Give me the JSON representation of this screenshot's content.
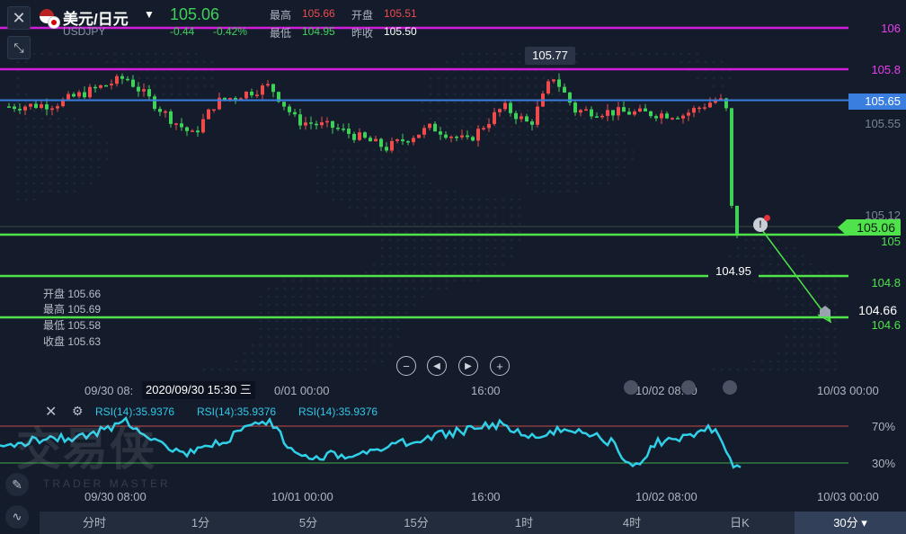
{
  "header": {
    "symbol_name": "美元/日元",
    "symbol_code": "USDJPY",
    "price": "105.06",
    "change": "-0.44",
    "change_pct": "-0.42%",
    "high_label": "最高",
    "high": "105.66",
    "low_label": "最低",
    "low": "104.95",
    "open_label": "开盘",
    "open": "105.51",
    "prev_label": "昨收",
    "prev": "105.50"
  },
  "price_axis": {
    "labels": [
      "106",
      "105.8",
      "105.65",
      "105.55",
      "105.12",
      "105.06",
      "105",
      "104.8",
      "104.66",
      "104.6"
    ]
  },
  "annotations": {
    "peak": "105.77",
    "trough": "104.95"
  },
  "ohlc_box": {
    "open": "开盘 105.66",
    "high": "最高 105.69",
    "low": "最低 105.58",
    "close": "收盘 105.63"
  },
  "time_axis": {
    "t0": "09/30 08:",
    "crosshair": "2020/09/30 15:30 三",
    "t1": "0/01 00:00",
    "t2": "16:00",
    "t3": "10/02 08:00",
    "t4": "10/03 00:00"
  },
  "rsi": {
    "labels": [
      "RSI(14):35.9376",
      "RSI(14):35.9376",
      "RSI(14):35.9376"
    ],
    "level_high": "70%",
    "level_low": "30%",
    "axis": [
      "09/30 08:00",
      "10/01 00:00",
      "16:00",
      "10/02 08:00",
      "10/03 00:00"
    ]
  },
  "watermark": {
    "text": "交易侠",
    "sub": "TRADER MASTER"
  },
  "tabs": [
    "分时",
    "1分",
    "5分",
    "15分",
    "1时",
    "4时",
    "日K",
    "30分"
  ],
  "active_tab": "30分",
  "colors": {
    "bg": "#141c2b",
    "up": "#ef4b4b",
    "down": "#3fd05a",
    "magenta_line": "#d21ddb",
    "blue_line": "#3a7ee0",
    "green_line": "#4fe24b",
    "rsi": "#2fd0e8"
  }
}
